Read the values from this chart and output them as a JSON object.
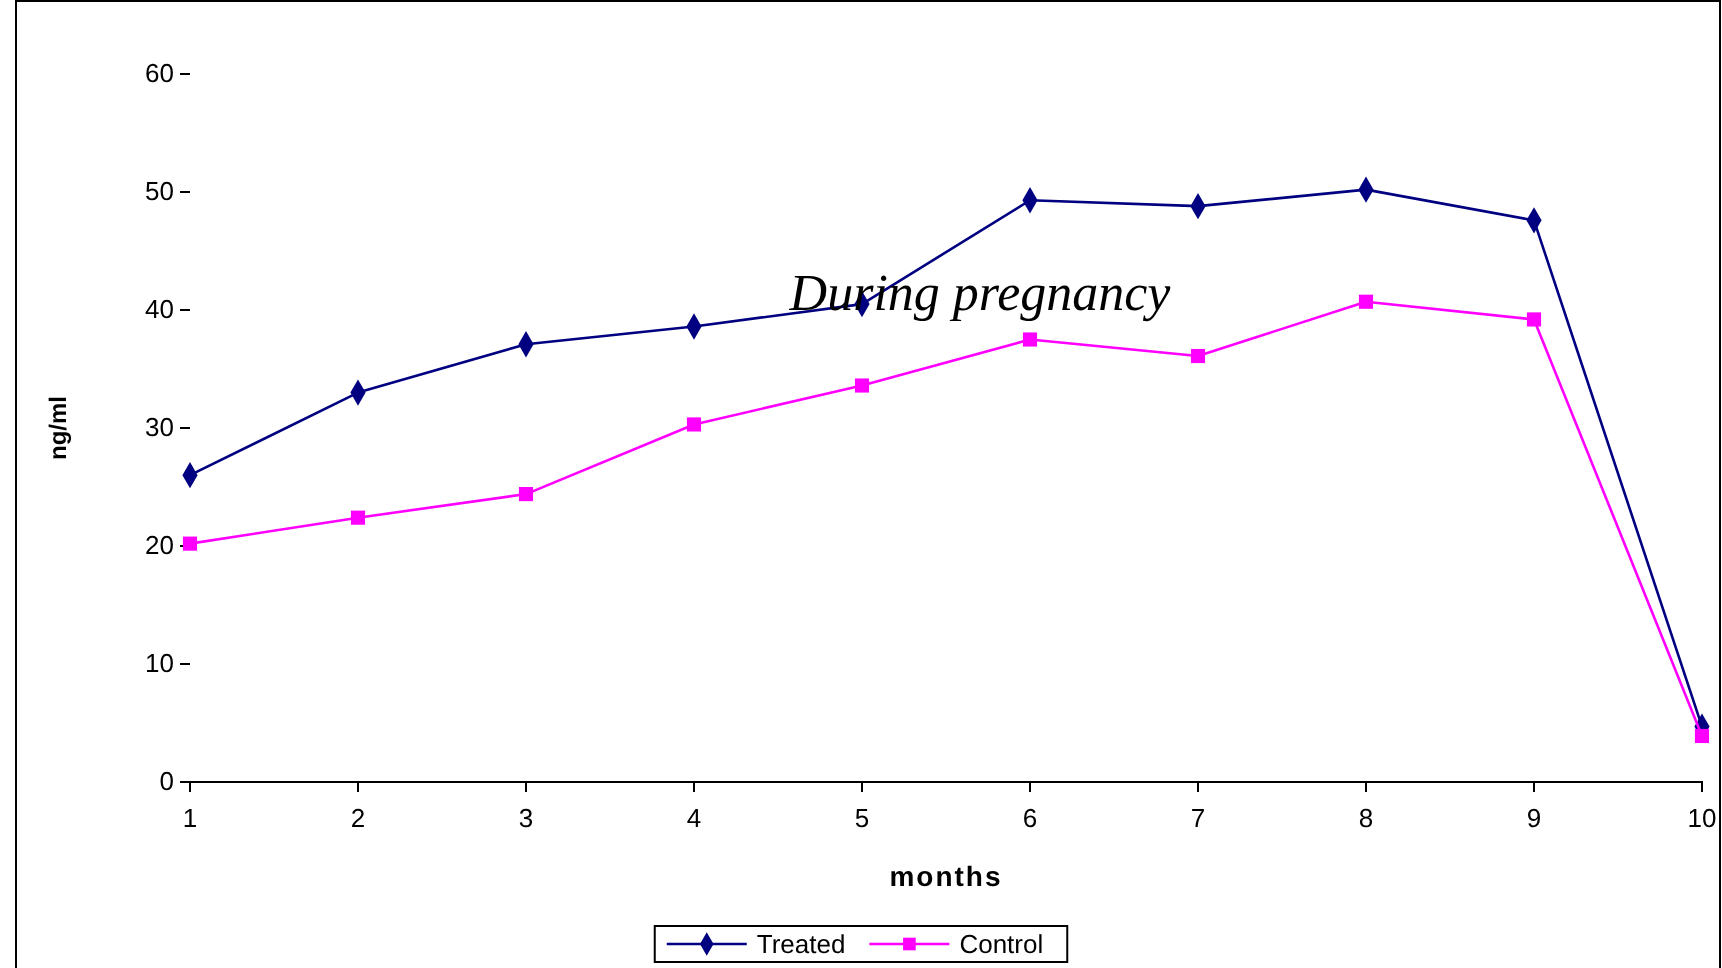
{
  "chart_data": {
    "type": "line",
    "title": "During pregnancy",
    "xlabel": "months",
    "ylabel": "ng/ml",
    "x": [
      1,
      2,
      3,
      4,
      5,
      6,
      7,
      8,
      9,
      10
    ],
    "series": [
      {
        "name": "Treated",
        "color": "#000080",
        "marker": "diamond",
        "values": [
          26,
          33,
          37.1,
          38.6,
          40.5,
          49.3,
          48.8,
          50.2,
          47.6,
          4.7
        ]
      },
      {
        "name": "Control",
        "color": "#ff00ff",
        "marker": "square",
        "values": [
          20.2,
          22.4,
          24.4,
          30.3,
          33.6,
          37.5,
          36.1,
          40.7,
          39.2,
          3.9
        ]
      }
    ],
    "xlim": [
      1,
      10
    ],
    "xticks": [
      1,
      2,
      3,
      4,
      5,
      6,
      7,
      8,
      9,
      10
    ],
    "ylim": [
      0,
      60
    ],
    "yticks": [
      0,
      10,
      20,
      30,
      40,
      50,
      60
    ],
    "grid": false,
    "legend": "bottom",
    "line_style": "solid"
  }
}
